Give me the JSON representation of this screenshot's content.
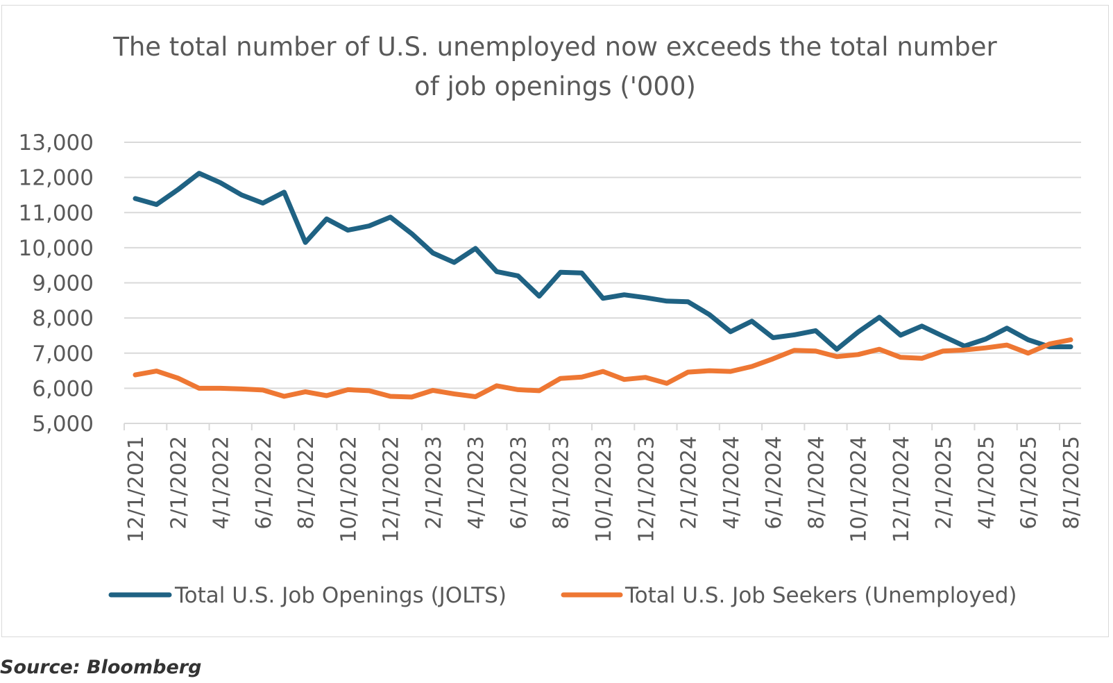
{
  "colors": {
    "job_openings": "#1f6283",
    "job_seekers": "#ee7733",
    "gridline": "#d9d9d9",
    "text": "#595959",
    "frame": "#d9d9d9"
  },
  "source_note": "Source: Bloomberg",
  "chart_data": {
    "type": "line",
    "title_lines": [
      "The total number of U.S. unemployed now exceeds the total number",
      "of job openings ('000)"
    ],
    "xlabel": "",
    "ylabel": "",
    "ylim": [
      5000,
      13000
    ],
    "yticks": [
      5000,
      6000,
      7000,
      8000,
      9000,
      10000,
      11000,
      12000,
      13000
    ],
    "ytick_labels": [
      "5,000",
      "6,000",
      "7,000",
      "8,000",
      "9,000",
      "10,000",
      "11,000",
      "12,000",
      "13,000"
    ],
    "grid": true,
    "legend_position": "bottom",
    "x": [
      "12/1/2021",
      "1/1/2022",
      "2/1/2022",
      "3/1/2022",
      "4/1/2022",
      "5/1/2022",
      "6/1/2022",
      "7/1/2022",
      "8/1/2022",
      "9/1/2022",
      "10/1/2022",
      "11/1/2022",
      "12/1/2022",
      "1/1/2023",
      "2/1/2023",
      "3/1/2023",
      "4/1/2023",
      "5/1/2023",
      "6/1/2023",
      "7/1/2023",
      "8/1/2023",
      "9/1/2023",
      "10/1/2023",
      "11/1/2023",
      "12/1/2023",
      "1/1/2024",
      "2/1/2024",
      "3/1/2024",
      "4/1/2024",
      "5/1/2024",
      "6/1/2024",
      "7/1/2024",
      "8/1/2024",
      "9/1/2024",
      "10/1/2024",
      "11/1/2024",
      "12/1/2024",
      "1/1/2025",
      "2/1/2025",
      "3/1/2025",
      "4/1/2025",
      "5/1/2025",
      "6/1/2025",
      "7/1/2025",
      "8/1/2025"
    ],
    "x_tick_labels": [
      "12/1/2021",
      "2/1/2022",
      "4/1/2022",
      "6/1/2022",
      "8/1/2022",
      "10/1/2022",
      "12/1/2022",
      "2/1/2023",
      "4/1/2023",
      "6/1/2023",
      "8/1/2023",
      "10/1/2023",
      "12/1/2023",
      "2/1/2024",
      "4/1/2024",
      "6/1/2024",
      "8/1/2024",
      "10/1/2024",
      "12/1/2024",
      "2/1/2025",
      "4/1/2025",
      "6/1/2025",
      "8/1/2025"
    ],
    "series": [
      {
        "name": "Total U.S. Job Openings (JOLTS)",
        "color_key": "job_openings",
        "values": [
          11400,
          11230,
          11650,
          12120,
          11850,
          11500,
          11270,
          11580,
          10150,
          10820,
          10500,
          10620,
          10870,
          10400,
          9850,
          9580,
          9980,
          9320,
          9200,
          8620,
          9300,
          9280,
          8560,
          8660,
          8580,
          8480,
          8460,
          8100,
          7610,
          7910,
          7440,
          7520,
          7640,
          7110,
          7600,
          8020,
          7510,
          7770,
          7480,
          7200,
          7400,
          7710,
          7380,
          7180,
          7180
        ]
      },
      {
        "name": "Total U.S. Job Seekers (Unemployed)",
        "color_key": "job_seekers",
        "values": [
          6380,
          6490,
          6290,
          6000,
          6000,
          5980,
          5950,
          5770,
          5900,
          5790,
          5960,
          5930,
          5770,
          5750,
          5940,
          5840,
          5760,
          6070,
          5960,
          5930,
          6280,
          6320,
          6480,
          6250,
          6310,
          6140,
          6460,
          6500,
          6480,
          6620,
          6840,
          7080,
          7060,
          6900,
          6960,
          7110,
          6880,
          6850,
          7060,
          7090,
          7150,
          7230,
          7000,
          7260,
          7380
        ]
      }
    ]
  }
}
